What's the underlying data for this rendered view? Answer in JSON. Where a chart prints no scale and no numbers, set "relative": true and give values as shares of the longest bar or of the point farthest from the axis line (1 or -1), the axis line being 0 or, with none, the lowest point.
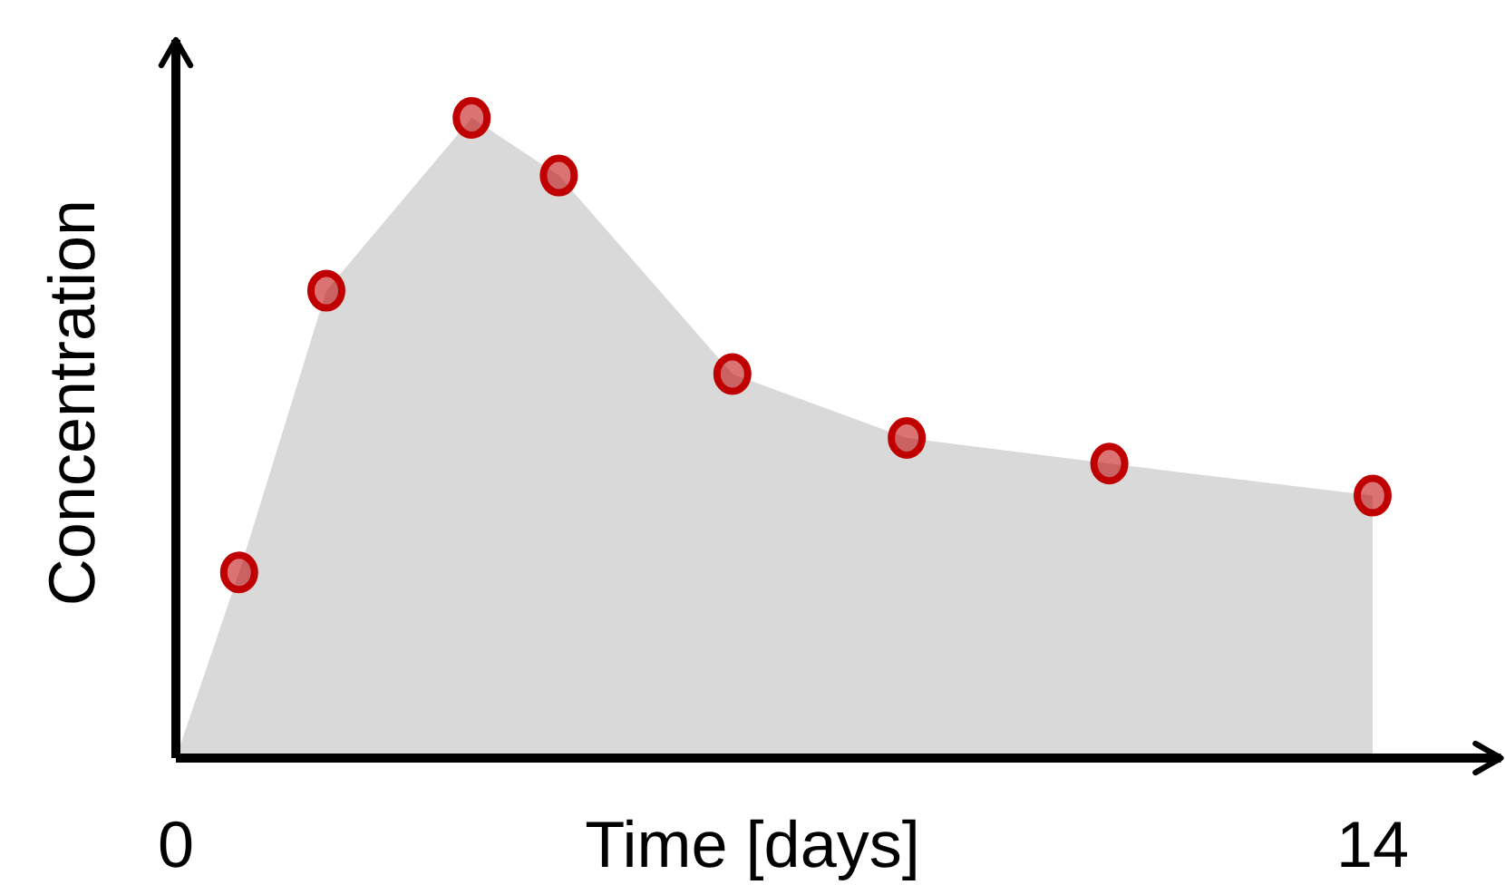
{
  "chart_data": {
    "type": "area",
    "xlabel": "Time [days]",
    "ylabel": "Concentration",
    "relative": true,
    "xlim": [
      0,
      15.5
    ],
    "xticks": [
      0,
      14
    ],
    "grid": false,
    "legend": false,
    "series": [
      {
        "color": "#d9d9d9",
        "x": [
          0,
          0.74,
          1.76,
          3.46,
          4.48,
          6.51,
          8.55,
          10.92,
          14
        ],
        "values": [
          0,
          0.29,
          0.73,
          1,
          0.91,
          0.6,
          0.5,
          0.46,
          0.41
        ]
      },
      {
        "type": "scatter",
        "marker": "circle",
        "color": "#c00000",
        "x": [
          0.74,
          1.76,
          3.46,
          4.48,
          6.51,
          8.55,
          10.92,
          14
        ],
        "values": [
          0.29,
          0.73,
          1,
          0.91,
          0.6,
          0.5,
          0.46,
          0.41
        ]
      }
    ]
  }
}
